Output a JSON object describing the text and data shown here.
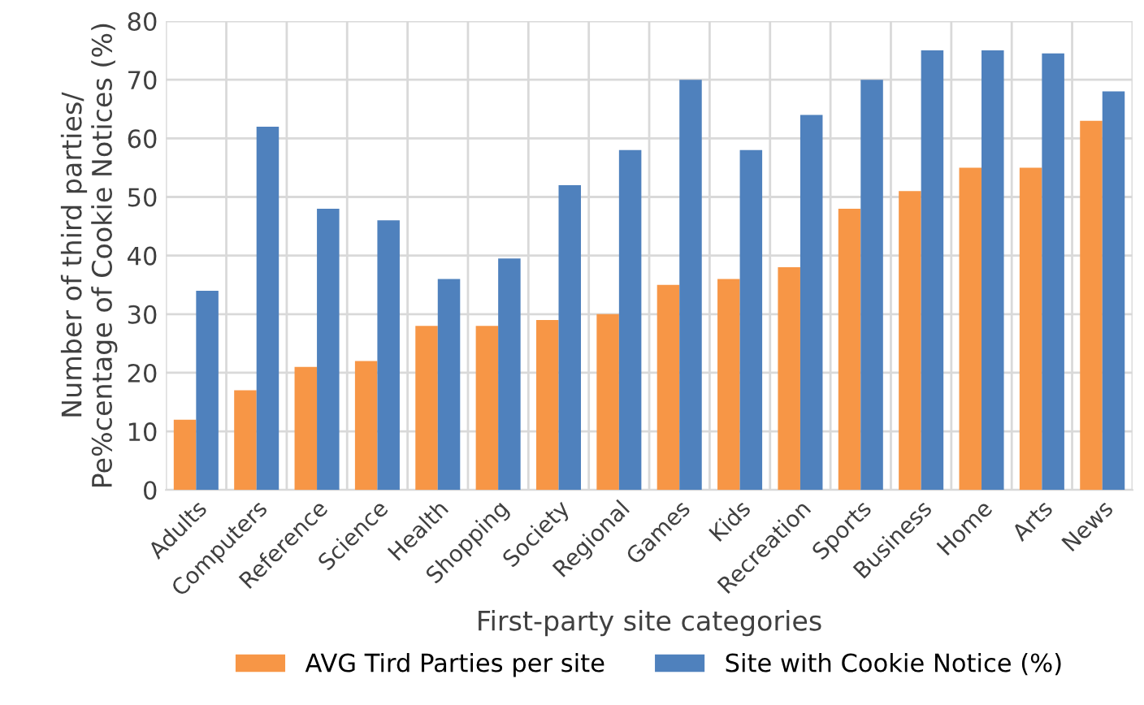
{
  "chart_data": {
    "type": "bar",
    "xlabel": "First-party site categories",
    "ylabel": "Number of third parties/\nPe%centage of Cookie Notices (%)",
    "categories": [
      "Adults",
      "Computers",
      "Reference",
      "Science",
      "Health",
      "Shopping",
      "Society",
      "Regional",
      "Games",
      "Kids",
      "Recreation",
      "Sports",
      "Business",
      "Home",
      "Arts",
      "News"
    ],
    "series": [
      {
        "name": "AVG Tird Parties per site",
        "color": "#f79646",
        "values": [
          12,
          17,
          21,
          22,
          28,
          28,
          29,
          30,
          35,
          36,
          38,
          48,
          51,
          55,
          55,
          63
        ]
      },
      {
        "name": "Site with Cookie Notice (%)",
        "color": "#4f81bd",
        "values": [
          34,
          62,
          48,
          46,
          36,
          39.5,
          52,
          58,
          70,
          58,
          64,
          70,
          75,
          75,
          74.5,
          68
        ]
      }
    ],
    "ylim": [
      0,
      80
    ],
    "yticks": [
      0,
      10,
      20,
      30,
      40,
      50,
      60,
      70,
      80
    ],
    "grid": true,
    "legend": "bottom"
  }
}
